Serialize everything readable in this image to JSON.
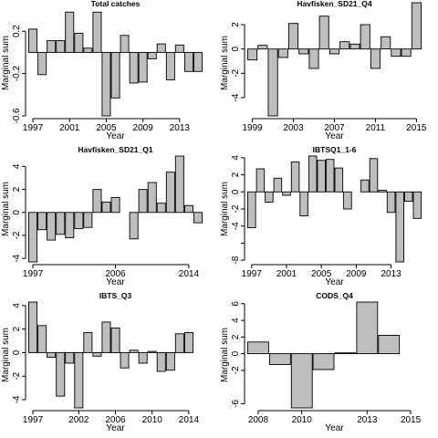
{
  "chart_data": [
    {
      "type": "bar",
      "title": "Total catches",
      "xlabel": "Year",
      "ylabel": "Marginal sum",
      "ylim": [
        -0.6,
        0.4
      ],
      "yticks": [
        0.2,
        -0.2,
        -0.6
      ],
      "ytick_labels": [
        "0.2",
        "-0.2",
        "-0.6"
      ],
      "years": [
        1997,
        1998,
        1999,
        2000,
        2001,
        2002,
        2003,
        2004,
        2005,
        2006,
        2007,
        2008,
        2009,
        2010,
        2011,
        2012,
        2013,
        2014,
        2015
      ],
      "values": [
        0.22,
        -0.21,
        0.11,
        0.11,
        0.38,
        0.18,
        0.04,
        0.38,
        -0.6,
        -0.43,
        0.16,
        -0.29,
        -0.28,
        -0.06,
        0.08,
        -0.26,
        0.07,
        -0.18,
        -0.18
      ],
      "xticks": [
        1997,
        2001,
        2005,
        2009,
        2013
      ],
      "xtick_labels": [
        "1997",
        "2001",
        "2005",
        "2009",
        "2013"
      ]
    },
    {
      "type": "bar",
      "title": "Havfisken_SD21_Q4",
      "xlabel": "Year",
      "ylabel": "Marginal sum",
      "ylim": [
        -5.5,
        3.2
      ],
      "yticks": [
        2,
        0,
        -2,
        -4
      ],
      "ytick_labels": [
        "2",
        "0",
        "-2",
        "-4"
      ],
      "years": [
        1999,
        2000,
        2001,
        2002,
        2003,
        2004,
        2005,
        2006,
        2007,
        2008,
        2009,
        2010,
        2011,
        2012,
        2013,
        2014,
        2015
      ],
      "values": [
        -0.9,
        0.3,
        -5.5,
        -0.7,
        2.1,
        -0.4,
        -1.6,
        2.7,
        -0.4,
        0.6,
        0.4,
        2.0,
        -1.6,
        1.0,
        -0.6,
        -0.6,
        3.8
      ],
      "xticks": [
        1999,
        2003,
        2007,
        2011,
        2015
      ],
      "xtick_labels": [
        "1999",
        "2003",
        "2007",
        "2011",
        "2015"
      ]
    },
    {
      "type": "bar",
      "title": "Havfisken_SD21_Q1",
      "xlabel": "Year",
      "ylabel": "Marginal sum",
      "ylim": [
        -4.3,
        4.9
      ],
      "yticks": [
        4,
        2,
        0,
        -2,
        -4
      ],
      "ytick_labels": [
        "4",
        "2",
        "0",
        "-2",
        "-4"
      ],
      "years": [
        1997,
        1998,
        1999,
        2000,
        2001,
        2002,
        2003,
        2004,
        2005,
        2006,
        2007,
        2008,
        2009,
        2010,
        2011,
        2012,
        2013,
        2014,
        2015
      ],
      "values": [
        -4.3,
        -1.5,
        -2.4,
        -1.9,
        -2.2,
        -1.4,
        -1.3,
        2.0,
        0.9,
        1.3,
        0.0,
        -2.3,
        2.0,
        2.6,
        0.8,
        3.5,
        4.9,
        0.6,
        -0.9
      ],
      "xticks": [
        1997,
        2006,
        2014
      ],
      "xtick_labels": [
        "1997",
        "2006",
        "2014"
      ]
    },
    {
      "type": "bar",
      "title": "IBTSQ1_1-6",
      "xlabel": "Year",
      "ylabel": "Marginal sum",
      "ylim": [
        -8.2,
        4.2
      ],
      "yticks": [
        4,
        2,
        0,
        -2,
        -4,
        -6,
        -8
      ],
      "ytick_labels": [
        "4",
        "2",
        "0",
        "-2",
        "-4",
        "",
        "-8"
      ],
      "years": [
        1997,
        1998,
        1999,
        2000,
        2001,
        2002,
        2003,
        2004,
        2005,
        2006,
        2007,
        2008,
        2009,
        2010,
        2011,
        2012,
        2013,
        2014,
        2015,
        2016
      ],
      "values": [
        -4.2,
        2.7,
        -1.2,
        1.6,
        -0.4,
        3.5,
        -2.8,
        4.2,
        3.7,
        3.8,
        2.8,
        -2.0,
        0.0,
        1.4,
        3.9,
        0.2,
        -2.4,
        -8.2,
        -1.1,
        -3.1
      ],
      "xticks": [
        1997,
        2001,
        2005,
        2009,
        2013
      ],
      "xtick_labels": [
        "1997",
        "2001",
        "2005",
        "2009",
        "2013"
      ]
    },
    {
      "type": "bar",
      "title": "IBTS_Q3",
      "xlabel": "Year",
      "ylabel": "Marginal sum",
      "ylim": [
        -4.7,
        4.3
      ],
      "yticks": [
        4,
        2,
        0,
        -2,
        -4
      ],
      "ytick_labels": [
        "4",
        "2",
        "0",
        "-2",
        "-4"
      ],
      "years": [
        1997,
        1998,
        1999,
        2000,
        2001,
        2002,
        2003,
        2004,
        2005,
        2006,
        2007,
        2008,
        2009,
        2010,
        2011,
        2012,
        2013,
        2014,
        2015
      ],
      "values": [
        4.3,
        2.3,
        -0.4,
        -3.7,
        -0.9,
        -4.7,
        1.7,
        -0.3,
        2.6,
        2.1,
        -1.3,
        0.2,
        -0.9,
        0.1,
        -1.6,
        -1.5,
        1.6,
        1.7,
        0.0
      ],
      "xticks": [
        1997,
        2002,
        2006,
        2010,
        2014
      ],
      "xtick_labels": [
        "1997",
        "2002",
        "2006",
        "2010",
        "2014"
      ]
    },
    {
      "type": "bar",
      "title": "CODS_Q4",
      "xlabel": "Year",
      "ylabel": "Marginal sum",
      "ylim": [
        -6.5,
        6.2
      ],
      "yticks": [
        6,
        4,
        2,
        0,
        -2,
        -6
      ],
      "ytick_labels": [
        "6",
        "4",
        "2",
        "0",
        "-2",
        "-6"
      ],
      "years": [
        2008,
        2009,
        2010,
        2011,
        2012,
        2013,
        2014,
        2015
      ],
      "values": [
        1.4,
        -1.3,
        -6.5,
        -1.9,
        0.1,
        6.2,
        2.2,
        0.0
      ],
      "xticks": [
        2008,
        2010,
        2013,
        2015
      ],
      "xtick_labels": [
        "2008",
        "2010",
        "2013",
        "2015"
      ]
    }
  ]
}
